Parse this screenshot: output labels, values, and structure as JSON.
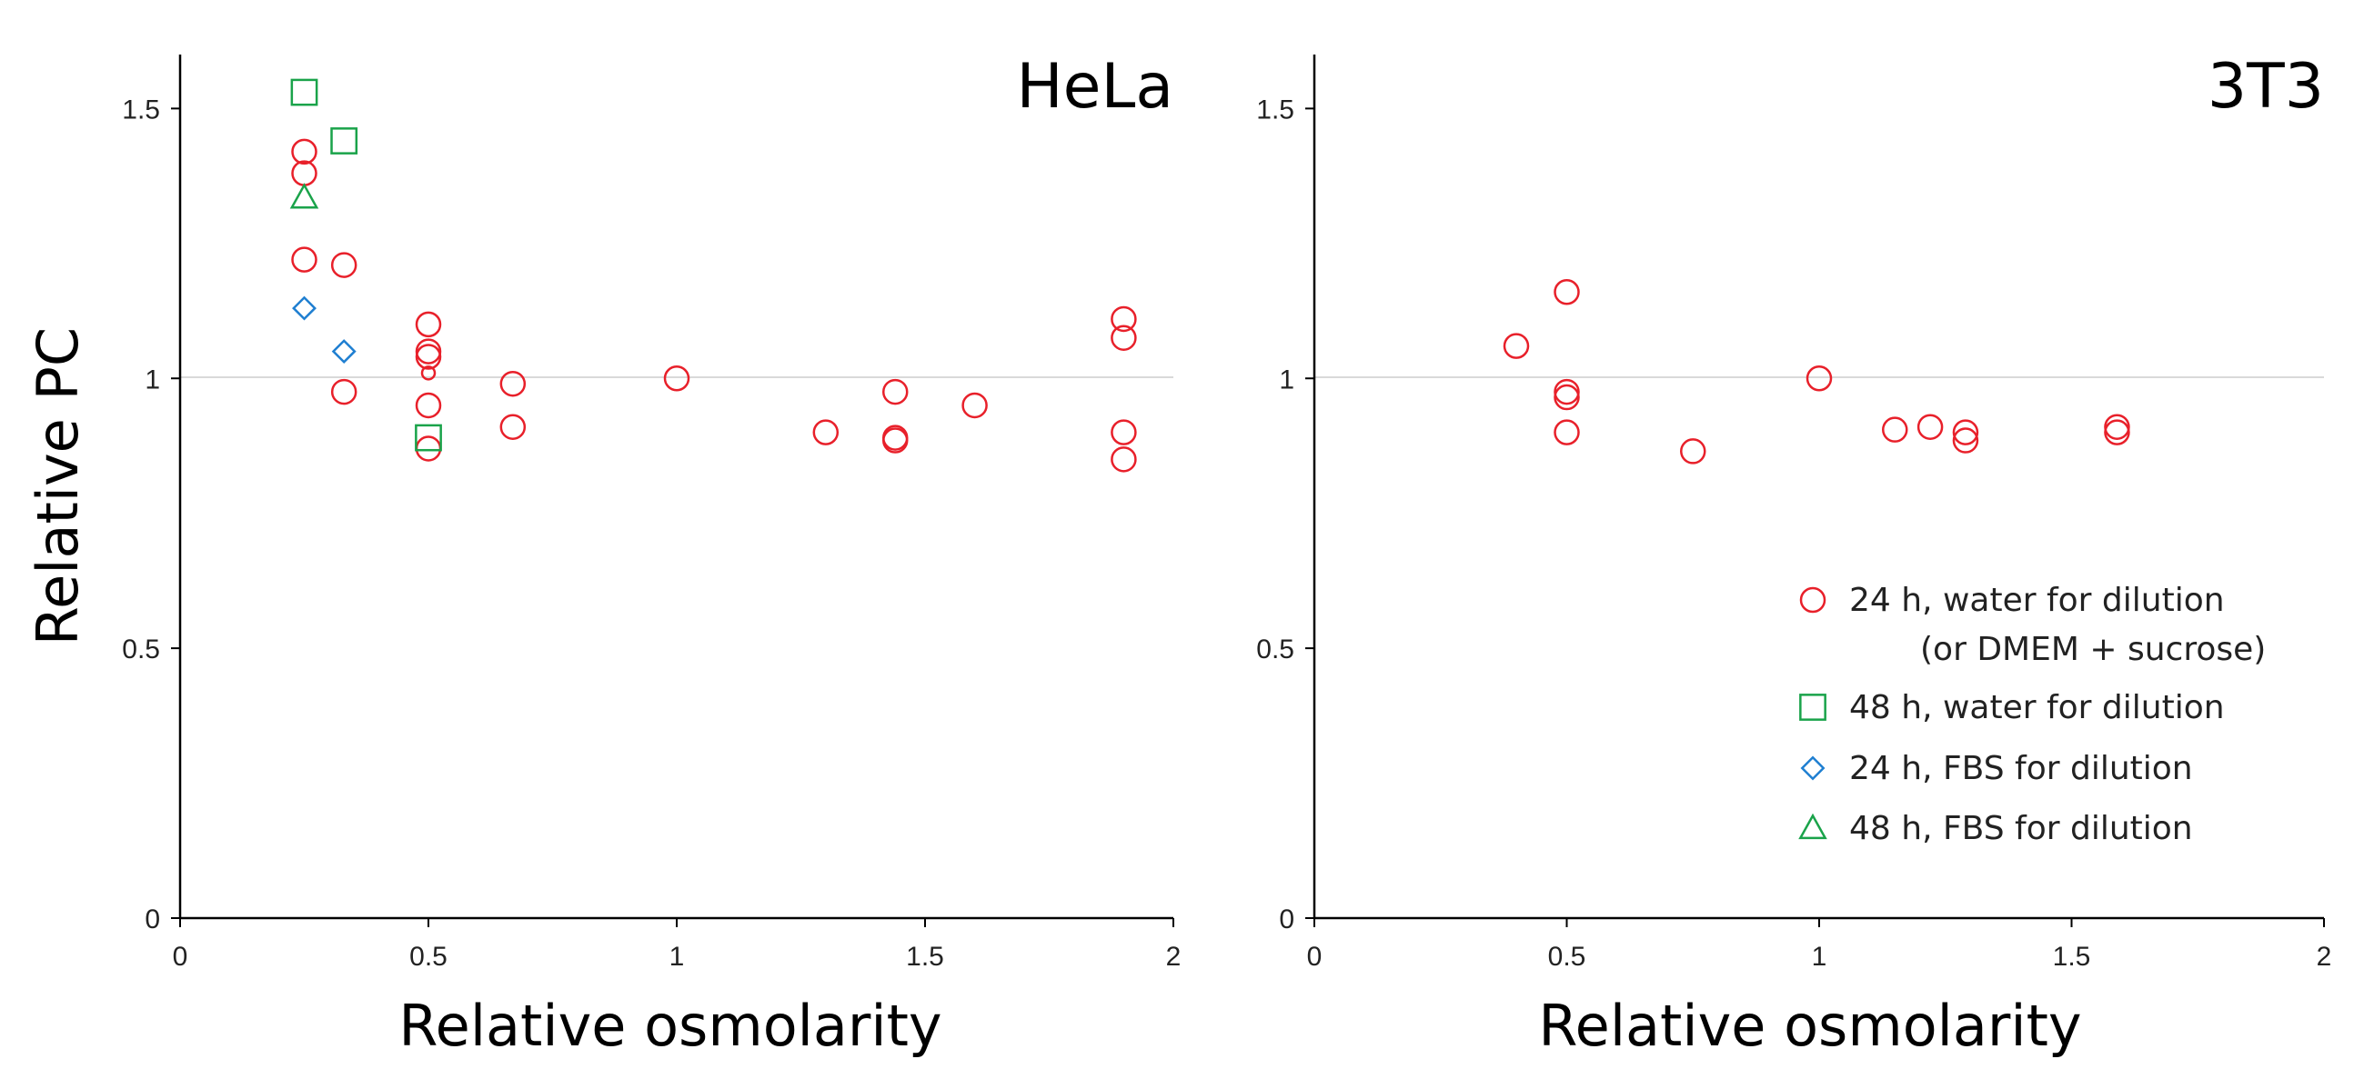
{
  "chart_data": [
    {
      "type": "scatter",
      "title": "HeLa",
      "xlabel": "Relative osmolarity",
      "ylabel": "Relative PC",
      "xlim": [
        0,
        2
      ],
      "ylim": [
        0,
        1.6
      ],
      "xticks": [
        0,
        0.5,
        1,
        1.5,
        2
      ],
      "xtick_labels": [
        "0",
        "0.5",
        "1",
        "1.5",
        "2"
      ],
      "yticks": [
        0,
        0.5,
        1,
        1.5
      ],
      "ytick_labels": [
        "0",
        "0.5",
        "1",
        "1.5"
      ],
      "reference_line_y": 1,
      "series": [
        {
          "name": "24 h, water for dilution (or DMEM + sucrose)",
          "marker": "circle",
          "color": "#e8202a",
          "points": [
            [
              0.25,
              1.42
            ],
            [
              0.25,
              1.38
            ],
            [
              0.25,
              1.22
            ],
            [
              0.33,
              1.21
            ],
            [
              0.33,
              0.975
            ],
            [
              0.5,
              1.1
            ],
            [
              0.5,
              1.05
            ],
            [
              0.5,
              1.04
            ],
            [
              0.5,
              0.95
            ],
            [
              0.5,
              0.87
            ],
            [
              0.67,
              0.99
            ],
            [
              0.67,
              0.91
            ],
            [
              1.0,
              1.0
            ],
            [
              1.3,
              0.9
            ],
            [
              1.44,
              0.975
            ],
            [
              1.44,
              0.89
            ],
            [
              1.44,
              0.885
            ],
            [
              1.6,
              0.95
            ],
            [
              1.9,
              1.11
            ],
            [
              1.9,
              1.075
            ],
            [
              1.9,
              0.9
            ],
            [
              1.9,
              0.85
            ]
          ],
          "small_points": [
            [
              0.5,
              1.01
            ]
          ]
        },
        {
          "name": "48 h, water for dilution",
          "marker": "square",
          "color": "#1aa34a",
          "points": [
            [
              0.25,
              1.53
            ],
            [
              0.33,
              1.44
            ],
            [
              0.5,
              0.89
            ]
          ]
        },
        {
          "name": "24 h, FBS for dilution",
          "marker": "diamond",
          "color": "#1f7fd1",
          "points": [
            [
              0.25,
              1.13
            ],
            [
              0.33,
              1.05
            ]
          ]
        },
        {
          "name": "48 h, FBS for dilution",
          "marker": "triangle",
          "color": "#1aa34a",
          "points": [
            [
              0.25,
              1.335
            ]
          ]
        }
      ]
    },
    {
      "type": "scatter",
      "title": "3T3",
      "xlabel": "Relative osmolarity",
      "ylabel": "",
      "xlim": [
        0,
        2
      ],
      "ylim": [
        0,
        1.6
      ],
      "xticks": [
        0,
        0.5,
        1,
        1.5,
        2
      ],
      "xtick_labels": [
        "0",
        "0.5",
        "1",
        "1.5",
        "2"
      ],
      "yticks": [
        0,
        0.5,
        1,
        1.5
      ],
      "ytick_labels": [
        "0",
        "0.5",
        "1",
        "1.5"
      ],
      "reference_line_y": 1,
      "series": [
        {
          "name": "24 h, water for dilution (or DMEM + sucrose)",
          "marker": "circle",
          "color": "#e8202a",
          "points": [
            [
              0.4,
              1.06
            ],
            [
              0.5,
              1.16
            ],
            [
              0.5,
              0.975
            ],
            [
              0.5,
              0.965
            ],
            [
              0.5,
              0.9
            ],
            [
              0.75,
              0.865
            ],
            [
              1.0,
              1.0
            ],
            [
              1.15,
              0.905
            ],
            [
              1.22,
              0.91
            ],
            [
              1.29,
              0.9
            ],
            [
              1.29,
              0.885
            ],
            [
              1.59,
              0.91
            ],
            [
              1.59,
              0.9
            ]
          ]
        }
      ]
    }
  ],
  "legend": {
    "placement": "bottom-right of right panel",
    "entries": [
      {
        "marker": "circle",
        "color": "#e8202a",
        "label": "24 h, water for dilution",
        "label2": "(or DMEM + sucrose)"
      },
      {
        "marker": "square",
        "color": "#1aa34a",
        "label": "48 h, water for dilution"
      },
      {
        "marker": "diamond",
        "color": "#1f7fd1",
        "label": "24 h, FBS for dilution"
      },
      {
        "marker": "triangle",
        "color": "#1aa34a",
        "label": "48 h, FBS for dilution"
      }
    ]
  }
}
